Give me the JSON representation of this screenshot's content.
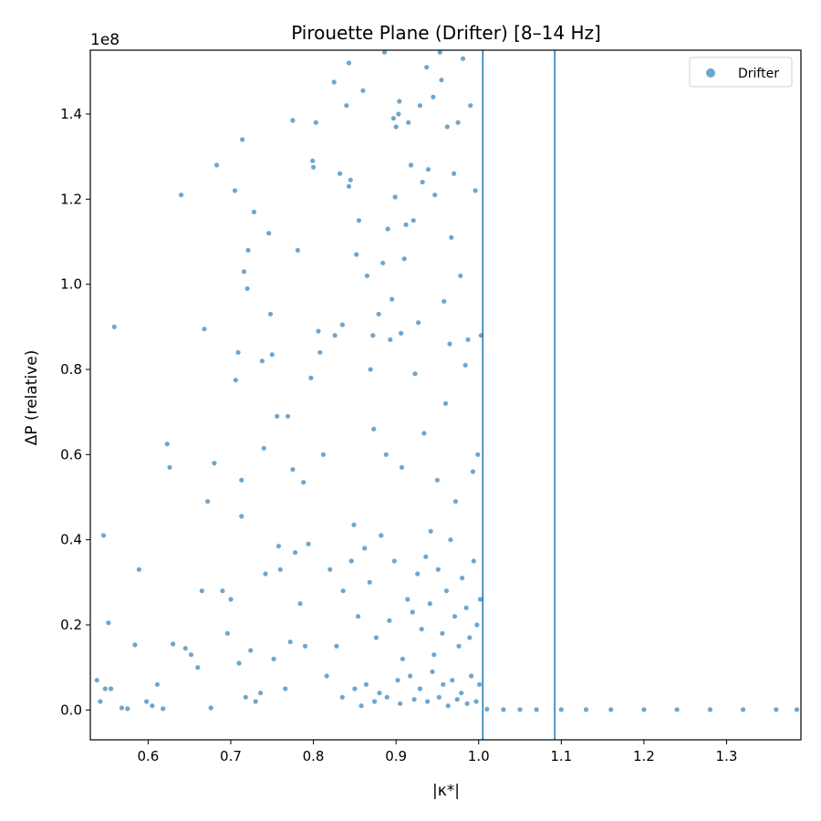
{
  "chart_data": {
    "type": "scatter",
    "title": "Pirouette Plane (Drifter)  [8–14 Hz]",
    "xlabel": "|κ*|",
    "ylabel": "ΔP (relative)",
    "y_offset_label": "1e8",
    "xlim": [
      0.53,
      1.39
    ],
    "ylim": [
      -0.07,
      1.55
    ],
    "y_unit_multiplier": 100000000,
    "x_ticks": [
      0.6,
      0.7,
      0.8,
      0.9,
      1.0,
      1.1,
      1.2,
      1.3
    ],
    "x_tick_labels": [
      "0.6",
      "0.7",
      "0.8",
      "0.9",
      "1.0",
      "1.1",
      "1.2",
      "1.3"
    ],
    "y_ticks": [
      0.0,
      0.2,
      0.4,
      0.6,
      0.8,
      1.0,
      1.2,
      1.4
    ],
    "y_tick_labels": [
      "0.0",
      "0.2",
      "0.4",
      "0.6",
      "0.8",
      "1.0",
      "1.2",
      "1.4"
    ],
    "vlines": [
      1.005,
      1.092
    ],
    "grid": false,
    "legend_position": "top-right",
    "series": [
      {
        "name": "Drifter",
        "color": "#1f77b4",
        "x": [
          0.559,
          0.546,
          0.552,
          0.589,
          0.623,
          0.626,
          0.64,
          0.668,
          0.672,
          0.68,
          0.683,
          0.705,
          0.706,
          0.709,
          0.713,
          0.713,
          0.714,
          0.716,
          0.72,
          0.721,
          0.728,
          0.738,
          0.74,
          0.746,
          0.748,
          0.75,
          0.756,
          0.758,
          0.769,
          0.775,
          0.775,
          0.781,
          0.788,
          0.797,
          0.799,
          0.8,
          0.803,
          0.806,
          0.808,
          0.812,
          0.825,
          0.826,
          0.832,
          0.835,
          0.84,
          0.843,
          0.843,
          0.845,
          0.849,
          0.852,
          0.855,
          0.86,
          0.865,
          0.869,
          0.872,
          0.873,
          0.879,
          0.884,
          0.886,
          0.888,
          0.89,
          0.893,
          0.895,
          0.897,
          0.899,
          0.9,
          0.903,
          0.904,
          0.906,
          0.907,
          0.91,
          0.912,
          0.915,
          0.918,
          0.921,
          0.923,
          0.927,
          0.929,
          0.932,
          0.934,
          0.937,
          0.939,
          0.942,
          0.945,
          0.947,
          0.95,
          0.953,
          0.955,
          0.958,
          0.96,
          0.962,
          0.965,
          0.967,
          0.97,
          0.972,
          0.975,
          0.978,
          0.981,
          0.984,
          0.987,
          0.99,
          0.993,
          0.996,
          0.999,
          1.003,
          0.538,
          0.542,
          0.548,
          0.555,
          0.568,
          0.575,
          0.584,
          0.598,
          0.605,
          0.611,
          0.618,
          0.63,
          0.645,
          0.652,
          0.66,
          0.665,
          0.676,
          0.69,
          0.696,
          0.7,
          0.71,
          0.718,
          0.724,
          0.73,
          0.736,
          0.742,
          0.752,
          0.76,
          0.766,
          0.772,
          0.778,
          0.784,
          0.79,
          0.794,
          0.816,
          0.82,
          0.828,
          0.836,
          0.846,
          0.854,
          0.862,
          0.868,
          0.876,
          0.882,
          0.892,
          0.898,
          0.908,
          0.914,
          0.92,
          0.926,
          0.931,
          0.936,
          0.941,
          0.946,
          0.951,
          0.956,
          0.961,
          0.966,
          0.971,
          0.976,
          0.98,
          0.985,
          0.989,
          0.994,
          0.998,
          1.002,
          0.835,
          0.85,
          0.864,
          0.88,
          0.902,
          0.917,
          0.929,
          0.944,
          0.957,
          0.968,
          0.979,
          0.991,
          1.001,
          0.858,
          0.874,
          0.889,
          0.905,
          0.922,
          0.938,
          0.952,
          0.963,
          0.974,
          0.986,
          0.997,
          1.01,
          1.03,
          1.05,
          1.07,
          1.1,
          1.13,
          1.16,
          1.2,
          1.24,
          1.28,
          1.32,
          1.36,
          1.385
        ],
        "y": [
          0.9,
          0.41,
          0.205,
          0.33,
          0.625,
          0.57,
          1.21,
          0.895,
          0.49,
          0.58,
          1.28,
          1.22,
          0.775,
          0.84,
          0.54,
          0.455,
          1.34,
          1.03,
          0.99,
          1.08,
          1.17,
          0.82,
          0.615,
          1.12,
          0.93,
          0.835,
          0.69,
          0.385,
          0.69,
          1.385,
          0.565,
          1.08,
          0.535,
          0.78,
          1.29,
          1.275,
          1.38,
          0.89,
          0.84,
          0.6,
          1.475,
          0.88,
          1.26,
          0.905,
          1.42,
          1.52,
          1.23,
          1.245,
          0.435,
          1.07,
          1.15,
          1.455,
          1.02,
          0.8,
          0.88,
          0.66,
          0.93,
          1.05,
          1.545,
          0.6,
          1.13,
          0.87,
          0.965,
          1.39,
          1.205,
          1.37,
          1.4,
          1.43,
          0.885,
          0.57,
          1.06,
          1.14,
          1.38,
          1.28,
          1.15,
          0.79,
          0.91,
          1.42,
          1.24,
          0.65,
          1.51,
          1.27,
          0.42,
          1.44,
          1.21,
          0.54,
          1.545,
          1.48,
          0.96,
          0.72,
          1.37,
          0.86,
          1.11,
          1.26,
          0.49,
          1.38,
          1.02,
          1.53,
          0.81,
          0.87,
          1.42,
          0.56,
          1.22,
          0.6,
          0.88,
          0.07,
          0.02,
          0.05,
          0.05,
          0.005,
          0.003,
          0.153,
          0.02,
          0.01,
          0.06,
          0.003,
          0.155,
          0.145,
          0.13,
          0.1,
          0.28,
          0.005,
          0.28,
          0.18,
          0.26,
          0.11,
          0.03,
          0.14,
          0.02,
          0.04,
          0.32,
          0.12,
          0.33,
          0.05,
          0.16,
          0.37,
          0.25,
          0.15,
          0.39,
          0.08,
          0.33,
          0.15,
          0.28,
          0.35,
          0.22,
          0.38,
          0.3,
          0.17,
          0.41,
          0.21,
          0.35,
          0.12,
          0.26,
          0.23,
          0.32,
          0.19,
          0.36,
          0.25,
          0.13,
          0.33,
          0.18,
          0.28,
          0.4,
          0.22,
          0.15,
          0.31,
          0.24,
          0.17,
          0.35,
          0.2,
          0.26,
          0.03,
          0.05,
          0.06,
          0.04,
          0.07,
          0.08,
          0.05,
          0.09,
          0.06,
          0.07,
          0.04,
          0.08,
          0.06,
          0.01,
          0.02,
          0.03,
          0.015,
          0.025,
          0.02,
          0.03,
          0.01,
          0.025,
          0.015,
          0.02,
          0.002,
          0.001,
          0.001,
          0.001,
          0.001,
          0.001,
          0.001,
          0.001,
          0.001,
          0.001,
          0.001,
          0.001,
          0.001
        ]
      }
    ]
  }
}
